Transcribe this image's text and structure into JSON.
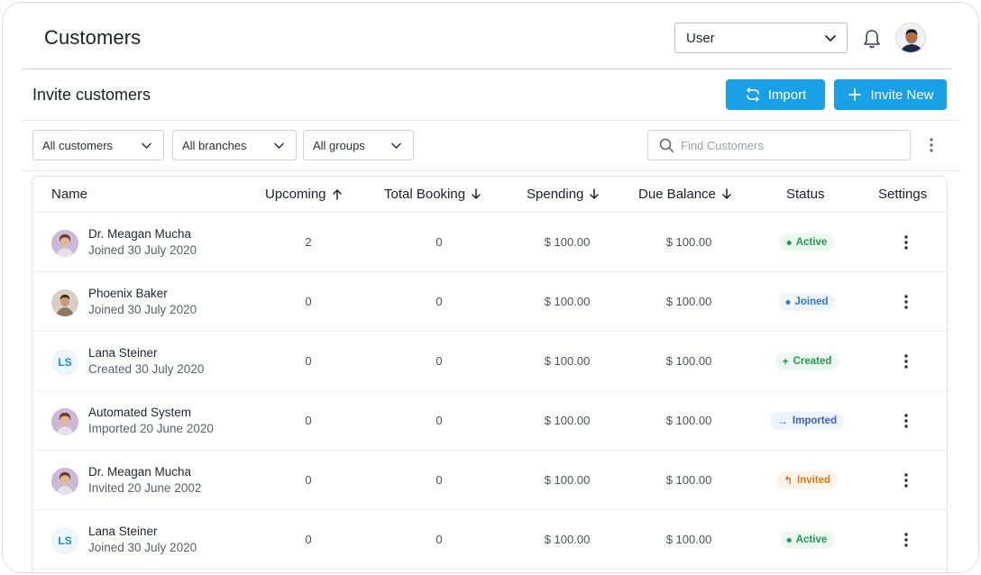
{
  "header": {
    "title": "Customers",
    "user_select": "User"
  },
  "invite": {
    "title": "Invite customers",
    "import_label": "Import",
    "invite_label": "Invite New"
  },
  "filters": {
    "customers": "All customers",
    "branches": "All branches",
    "groups": "All groups",
    "search_placeholder": "Find Customers"
  },
  "table": {
    "columns": {
      "name": "Name",
      "upcoming": "Upcoming",
      "total_booking": "Total Booking",
      "spending": "Spending",
      "due_balance": "Due Balance",
      "status": "Status",
      "settings": "Settings"
    },
    "rows": [
      {
        "name": "Dr. Meagan Mucha",
        "sub": "Joined 30 July 2020",
        "upcoming": "2",
        "total_booking": "0",
        "spending": "$ 100.00",
        "due_balance": "$ 100.00",
        "status": "Active",
        "avatar": "photo-woman",
        "initials": ""
      },
      {
        "name": "Phoenix Baker",
        "sub": "Joined 30 July 2020",
        "upcoming": "0",
        "total_booking": "0",
        "spending": "$ 100.00",
        "due_balance": "$ 100.00",
        "status": "Joined",
        "avatar": "photo-man",
        "initials": ""
      },
      {
        "name": "Lana Steiner",
        "sub": "Created 30 July 2020",
        "upcoming": "0",
        "total_booking": "0",
        "spending": "$ 100.00",
        "due_balance": "$ 100.00",
        "status": "Created",
        "avatar": "initials",
        "initials": "LS"
      },
      {
        "name": "Automated System",
        "sub": "Imported 20 June 2020",
        "upcoming": "0",
        "total_booking": "0",
        "spending": "$ 100.00",
        "due_balance": "$ 100.00",
        "status": "Imported",
        "avatar": "photo-woman",
        "initials": ""
      },
      {
        "name": "Dr. Meagan Mucha",
        "sub": "Invited 20 June 2002",
        "upcoming": "0",
        "total_booking": "0",
        "spending": "$ 100.00",
        "due_balance": "$ 100.00",
        "status": "Invited",
        "avatar": "photo-woman",
        "initials": ""
      },
      {
        "name": "Lana Steiner",
        "sub": "Joined 30 July 2020",
        "upcoming": "0",
        "total_booking": "0",
        "spending": "$ 100.00",
        "due_balance": "$ 100.00",
        "status": "Active",
        "avatar": "initials",
        "initials": "LS"
      }
    ]
  },
  "colors": {
    "primary": "#1aa0e6",
    "active": "#1f9a4d",
    "joined": "#2a79d6",
    "imported": "#3a5fcc",
    "invited": "#e07a16"
  }
}
